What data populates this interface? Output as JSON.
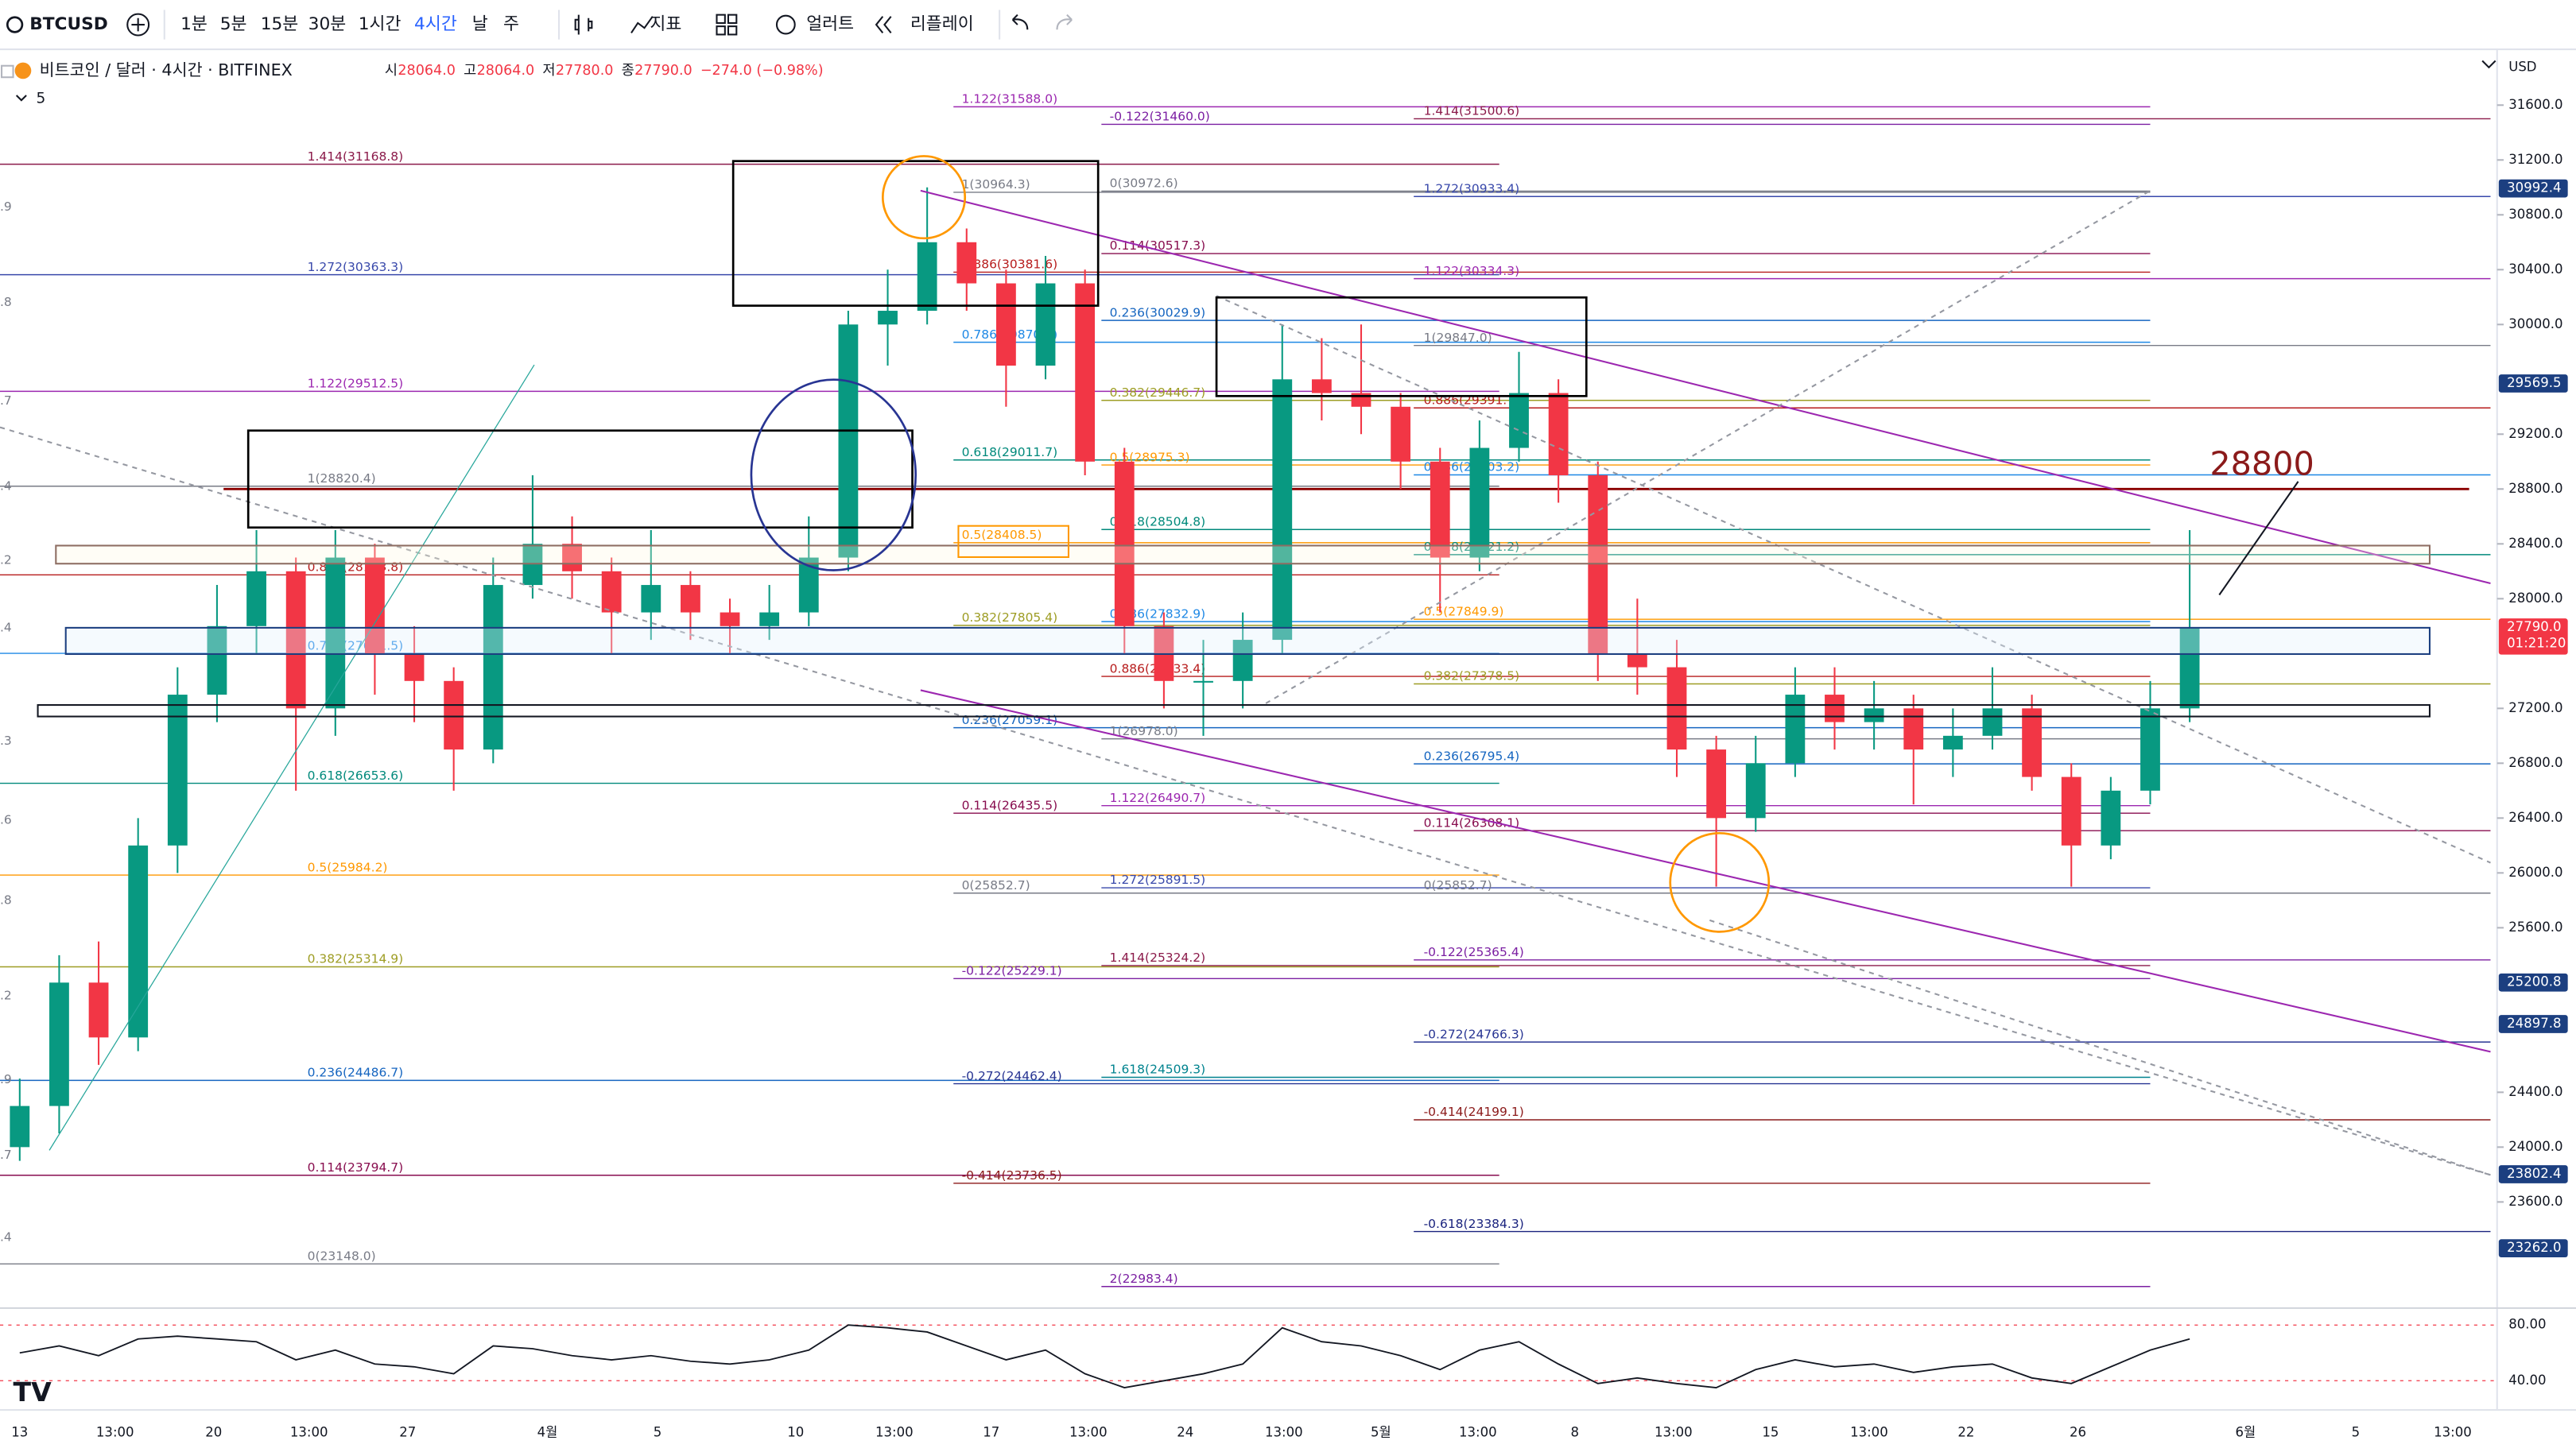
{
  "toolbar": {
    "symbol": "BTCUSD",
    "intervals": [
      "1분",
      "5분",
      "15분",
      "30분",
      "1시간",
      "4시간",
      "날",
      "주"
    ],
    "active_interval": 5,
    "tools": [
      "지표",
      "얼러트",
      "리플레이"
    ]
  },
  "header": {
    "name": "비트코인 / 달러 · 4시간 · BITFINEX",
    "ohlc": [
      {
        "label": "시",
        "value": "28064.0"
      },
      {
        "label": "고",
        "value": "28064.0"
      },
      {
        "label": "저",
        "value": "27780.0"
      },
      {
        "label": "종",
        "value": "27790.0"
      }
    ],
    "change": "−274.0 (−0.98%)",
    "indicator_count": "5"
  },
  "price_axis": {
    "currency": "USD",
    "ylim": [
      22838,
      32007
    ],
    "ticks": [
      {
        "value": 31600,
        "label": "31600.0"
      },
      {
        "value": 31200,
        "label": "31200.0"
      },
      {
        "value": 30800,
        "label": "30800.0"
      },
      {
        "value": 30400,
        "label": "30400.0"
      },
      {
        "value": 30000,
        "label": "30000.0"
      },
      {
        "value": 29200,
        "label": "29200.0"
      },
      {
        "value": 28800,
        "label": "28800.0"
      },
      {
        "value": 28400,
        "label": "28400.0"
      },
      {
        "value": 28000,
        "label": "28000.0"
      },
      {
        "value": 27200,
        "label": "27200.0"
      },
      {
        "value": 26800,
        "label": "26800.0"
      },
      {
        "value": 26400,
        "label": "26400.0"
      },
      {
        "value": 26000,
        "label": "26000.0"
      },
      {
        "value": 25600,
        "label": "25600.0"
      },
      {
        "value": 24400,
        "label": "24400.0"
      },
      {
        "value": 24000,
        "label": "24000.0"
      },
      {
        "value": 23600,
        "label": "23600.0"
      }
    ],
    "tags": [
      {
        "value": 30992.4,
        "label": "30992.4",
        "color": "#1c3f80"
      },
      {
        "value": 29569.5,
        "label": "29569.5",
        "color": "#1c3f80"
      },
      {
        "value": 27790.0,
        "label": "27790.0",
        "color": "#f23645",
        "countdown": "01:21:20"
      },
      {
        "value": 25200.8,
        "label": "25200.8",
        "color": "#1c3f80"
      },
      {
        "value": 24897.8,
        "label": "24897.8",
        "color": "#1c3f80"
      },
      {
        "value": 23802.4,
        "label": "23802.4",
        "color": "#1c3f80"
      },
      {
        "value": 23262.0,
        "label": "23262.0",
        "color": "#1c3f80"
      }
    ]
  },
  "left_edge_labels": [
    ".9",
    ".8",
    ".7",
    ".4",
    ".2",
    ".4",
    ".3",
    ".6",
    ".8",
    ".2",
    ".9",
    ".7",
    ".4"
  ],
  "time_axis": [
    "13",
    "13:00",
    "20",
    "13:00",
    "27",
    "4월",
    "5",
    "10",
    "13:00",
    "17",
    "13:00",
    "24",
    "13:00",
    "5월",
    "13:00",
    "8",
    "13:00",
    "15",
    "13:00",
    "22",
    "26",
    "6월",
    "5",
    "13:00"
  ],
  "fib_left": [
    {
      "value": 31168.8,
      "label": "1.414(31168.8)",
      "color": "#8b1a4a"
    },
    {
      "value": 30363.3,
      "label": "1.272(30363.3)",
      "color": "#3949ab"
    },
    {
      "value": 29512.5,
      "label": "1.122(29512.5)",
      "color": "#9c27b0"
    },
    {
      "value": 28820.4,
      "label": "1(28820.4)",
      "color": "#787b86"
    },
    {
      "value": 28173.8,
      "label": "0.886(28173.8)",
      "color": "#b71c1c"
    },
    {
      "value": 27601.5,
      "label": "0.786(27601.5)",
      "color": "#1e88e5"
    },
    {
      "value": 26653.6,
      "label": "0.618(26653.6)",
      "color": "#00897b"
    },
    {
      "value": 25984.2,
      "label": "0.5(25984.2)",
      "color": "#ff9800"
    },
    {
      "value": 25314.9,
      "label": "0.382(25314.9)",
      "color": "#9e9d24"
    },
    {
      "value": 24486.7,
      "label": "0.236(24486.7)",
      "color": "#1565c0"
    },
    {
      "value": 23794.7,
      "label": "0.114(23794.7)",
      "color": "#880e4f"
    },
    {
      "value": 23148.0,
      "label": "0(23148.0)",
      "color": "#787b86"
    }
  ],
  "fib_b": [
    {
      "value": 31588.0,
      "label": "1.122(31588.0)",
      "color": "#9c27b0"
    },
    {
      "value": 30964.3,
      "label": "1(30964.3)",
      "color": "#787b86"
    },
    {
      "value": 30381.6,
      "label": "0.886(30381.6)",
      "color": "#b71c1c"
    },
    {
      "value": 29870.5,
      "label": "0.786(29870.5)",
      "color": "#1e88e5"
    },
    {
      "value": 29011.7,
      "label": "0.618(29011.7)",
      "color": "#00897b"
    },
    {
      "value": 28408.5,
      "label": "0.5(28408.5)",
      "color": "#ff9800"
    },
    {
      "value": 27805.4,
      "label": "0.382(27805.4)",
      "color": "#9e9d24"
    },
    {
      "value": 27059.1,
      "label": "0.236(27059.1)",
      "color": "#1565c0"
    },
    {
      "value": 26435.5,
      "label": "0.114(26435.5)",
      "color": "#880e4f"
    },
    {
      "value": 25852.7,
      "label": "0(25852.7)",
      "color": "#787b86"
    },
    {
      "value": 25229.1,
      "label": "-0.122(25229.1)",
      "color": "#7b1fa2"
    },
    {
      "value": 24462.4,
      "label": "-0.272(24462.4)",
      "color": "#283593"
    },
    {
      "value": 23736.5,
      "label": "-0.414(23736.5)",
      "color": "#8b1a1a"
    }
  ],
  "fib_c": [
    {
      "value": 31460.0,
      "label": "-0.122(31460.0)",
      "color": "#7b1fa2"
    },
    {
      "value": 30972.6,
      "label": "0(30972.6)",
      "color": "#787b86"
    },
    {
      "value": 30517.3,
      "label": "0.114(30517.3)",
      "color": "#880e4f"
    },
    {
      "value": 30029.9,
      "label": "0.236(30029.9)",
      "color": "#1565c0"
    },
    {
      "value": 29446.7,
      "label": "0.382(29446.7)",
      "color": "#9e9d24"
    },
    {
      "value": 28975.3,
      "label": "0.5(28975.3)",
      "color": "#ff9800"
    },
    {
      "value": 28504.8,
      "label": "0.618(28504.8)",
      "color": "#00897b"
    },
    {
      "value": 27832.9,
      "label": "0.786(27832.9)",
      "color": "#1e88e5"
    },
    {
      "value": 27433.4,
      "label": "0.886(27433.4)",
      "color": "#b71c1c"
    },
    {
      "value": 26978.0,
      "label": "1(26978.0)",
      "color": "#787b86"
    },
    {
      "value": 26490.7,
      "label": "1.122(26490.7)",
      "color": "#9c27b0"
    },
    {
      "value": 25891.5,
      "label": "1.272(25891.5)",
      "color": "#3949ab"
    },
    {
      "value": 25324.2,
      "label": "1.414(25324.2)",
      "color": "#8b1a4a"
    },
    {
      "value": 24509.3,
      "label": "1.618(24509.3)",
      "color": "#00838f"
    },
    {
      "value": 22983.4,
      "label": "2(22983.4)",
      "color": "#7b1fa2"
    }
  ],
  "fib_d": [
    {
      "value": 31500.6,
      "label": "1.414(31500.6)",
      "color": "#8b1a4a"
    },
    {
      "value": 30933.4,
      "label": "1.272(30933.4)",
      "color": "#3949ab"
    },
    {
      "value": 30334.3,
      "label": "1.122(30334.3)",
      "color": "#9c27b0"
    },
    {
      "value": 29847.0,
      "label": "1(29847.0)",
      "color": "#787b86"
    },
    {
      "value": 29391.7,
      "label": "0.886(29391.7)",
      "color": "#b71c1c"
    },
    {
      "value": 28903.2,
      "label": "0.786(28903.2)",
      "color": "#1e88e5"
    },
    {
      "value": 28321.2,
      "label": "0.618(28321.2)",
      "color": "#00897b"
    },
    {
      "value": 27849.9,
      "label": "0.5(27849.9)",
      "color": "#ff9800"
    },
    {
      "value": 27378.5,
      "label": "0.382(27378.5)",
      "color": "#9e9d24"
    },
    {
      "value": 26795.4,
      "label": "0.236(26795.4)",
      "color": "#1565c0"
    },
    {
      "value": 26308.1,
      "label": "0.114(26308.1)",
      "color": "#880e4f"
    },
    {
      "value": 25852.7,
      "label": "0(25852.7)",
      "color": "#787b86"
    },
    {
      "value": 25365.4,
      "label": "-0.122(25365.4)",
      "color": "#7b1fa2"
    },
    {
      "value": 24766.3,
      "label": "-0.272(24766.3)",
      "color": "#283593"
    },
    {
      "value": 24199.1,
      "label": "-0.414(24199.1)",
      "color": "#8b1a1a"
    },
    {
      "value": 23384.3,
      "label": "-0.618(23384.3)",
      "color": "#1a237e"
    }
  ],
  "annotation": {
    "text": "28800",
    "value": 28800
  },
  "candles": [
    [
      24000,
      24500,
      23900,
      24300
    ],
    [
      24300,
      25400,
      24100,
      25200
    ],
    [
      25200,
      25500,
      24600,
      24800
    ],
    [
      24800,
      26400,
      24700,
      26200
    ],
    [
      26200,
      27500,
      26000,
      27300
    ],
    [
      27300,
      28100,
      27100,
      27800
    ],
    [
      27800,
      28500,
      27600,
      28200
    ],
    [
      28200,
      28300,
      26600,
      27200
    ],
    [
      27200,
      28500,
      27000,
      28300
    ],
    [
      28300,
      28400,
      27300,
      27600
    ],
    [
      27600,
      27800,
      27100,
      27400
    ],
    [
      27400,
      27500,
      26600,
      26900
    ],
    [
      26900,
      28300,
      26800,
      28100
    ],
    [
      28100,
      28900,
      28000,
      28400
    ],
    [
      28400,
      28600,
      28000,
      28200
    ],
    [
      28200,
      28300,
      27600,
      27900
    ],
    [
      27900,
      28500,
      27700,
      28100
    ],
    [
      28100,
      28200,
      27700,
      27900
    ],
    [
      27900,
      28000,
      27600,
      27800
    ],
    [
      27800,
      28100,
      27700,
      27900
    ],
    [
      27900,
      28600,
      27800,
      28300
    ],
    [
      28300,
      30100,
      28200,
      30000
    ],
    [
      30000,
      30400,
      29700,
      30100
    ],
    [
      30100,
      31000,
      30000,
      30600
    ],
    [
      30600,
      30700,
      30100,
      30300
    ],
    [
      30300,
      30400,
      29400,
      29700
    ],
    [
      29700,
      30500,
      29600,
      30300
    ],
    [
      30300,
      30400,
      28900,
      29000
    ],
    [
      29000,
      29100,
      27600,
      27800
    ],
    [
      27800,
      27900,
      27200,
      27400
    ],
    [
      27400,
      27700,
      27000,
      27400
    ],
    [
      27400,
      27900,
      27200,
      27700
    ],
    [
      27700,
      30000,
      27600,
      29600
    ],
    [
      29600,
      29900,
      29300,
      29500
    ],
    [
      29500,
      30000,
      29200,
      29400
    ],
    [
      29400,
      29500,
      28800,
      29000
    ],
    [
      29000,
      29100,
      27900,
      28300
    ],
    [
      28300,
      29300,
      28200,
      29100
    ],
    [
      29100,
      29800,
      29000,
      29500
    ],
    [
      29500,
      29600,
      28700,
      28900
    ],
    [
      28900,
      29000,
      27400,
      27600
    ],
    [
      27600,
      28000,
      27300,
      27500
    ],
    [
      27500,
      27700,
      26700,
      26900
    ],
    [
      26900,
      27000,
      25900,
      26400
    ],
    [
      26400,
      27000,
      26300,
      26800
    ],
    [
      26800,
      27500,
      26700,
      27300
    ],
    [
      27300,
      27500,
      26900,
      27100
    ],
    [
      27100,
      27400,
      26900,
      27200
    ],
    [
      27200,
      27300,
      26500,
      26900
    ],
    [
      26900,
      27200,
      26700,
      27000
    ],
    [
      27000,
      27500,
      26900,
      27200
    ],
    [
      27200,
      27300,
      26600,
      26700
    ],
    [
      26700,
      26800,
      25900,
      26200
    ],
    [
      26200,
      26700,
      26100,
      26600
    ],
    [
      26600,
      27400,
      26500,
      27200
    ],
    [
      27200,
      28500,
      27100,
      27790
    ]
  ],
  "rsi": {
    "ylim": [
      19,
      91
    ],
    "ticks": [
      {
        "value": 80,
        "label": "80.00"
      },
      {
        "value": 40,
        "label": "40.00"
      }
    ],
    "values": [
      60,
      65,
      58,
      70,
      72,
      70,
      68,
      55,
      62,
      52,
      50,
      45,
      65,
      63,
      58,
      55,
      58,
      54,
      52,
      55,
      62,
      80,
      78,
      75,
      65,
      55,
      62,
      45,
      35,
      40,
      45,
      52,
      78,
      68,
      65,
      58,
      48,
      62,
      68,
      52,
      38,
      42,
      38,
      35,
      48,
      55,
      50,
      52,
      46,
      50,
      52,
      42,
      38,
      50,
      62,
      70
    ]
  }
}
